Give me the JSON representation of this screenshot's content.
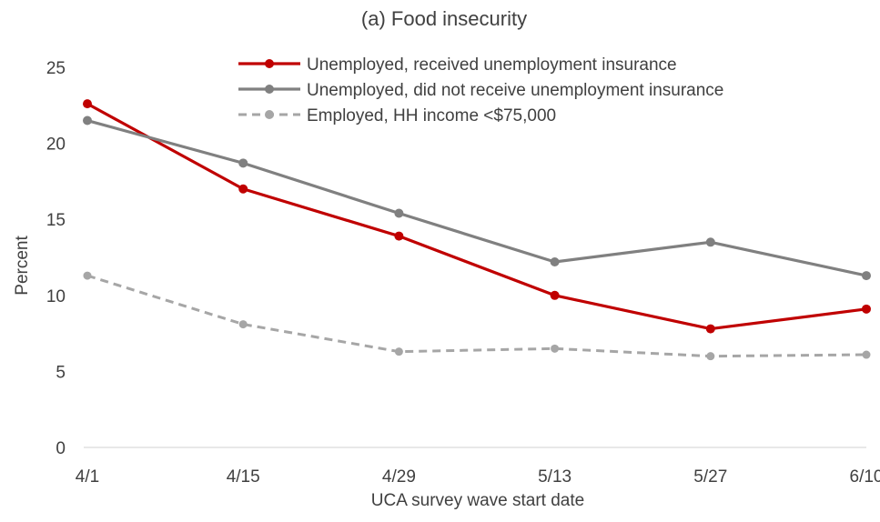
{
  "chart_data": {
    "type": "line",
    "title": "(a) Food insecurity",
    "xlabel": "UCA survey wave start date",
    "ylabel": "Percent",
    "categories": [
      "4/1",
      "4/15",
      "4/29",
      "5/13",
      "5/27",
      "6/10"
    ],
    "ylim": [
      0,
      25
    ],
    "yticks": [
      0,
      5,
      10,
      15,
      20,
      25
    ],
    "grid": false,
    "legend_position": "top-right",
    "series": [
      {
        "name": "Unemployed, received unemployment insurance",
        "values": [
          22.6,
          17.0,
          13.9,
          10.0,
          7.8,
          9.1
        ],
        "color": "#C00000",
        "dash": "solid"
      },
      {
        "name": "Unemployed, did not receive unemployment insurance",
        "values": [
          21.5,
          18.7,
          15.4,
          12.2,
          13.5,
          11.3
        ],
        "color": "#808080",
        "dash": "solid"
      },
      {
        "name": "Employed, HH income <$75,000",
        "values": [
          11.3,
          8.1,
          6.3,
          6.5,
          6.0,
          6.1
        ],
        "color": "#A6A6A6",
        "dash": "dashed"
      }
    ]
  }
}
